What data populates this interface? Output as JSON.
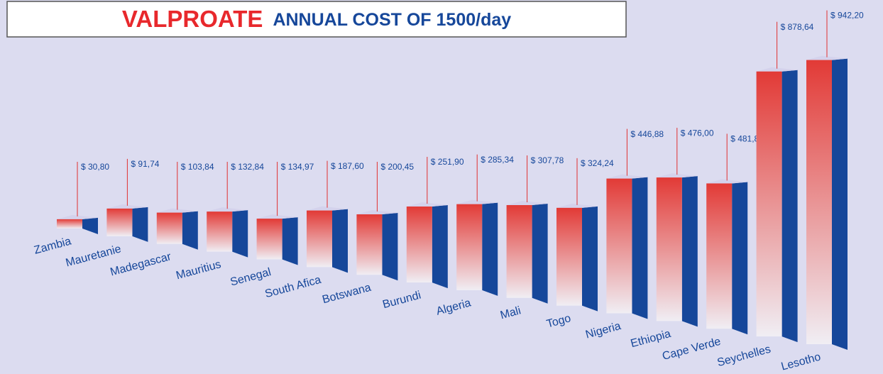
{
  "chart_data": {
    "type": "bar3d",
    "title": "VALPROATE",
    "subtitle": "ANNUAL COST OF 1500/day",
    "categories": [
      "Zambia",
      "Mauretanie",
      "Madegascar",
      "Mauritius",
      "Senegal",
      "South Afica",
      "Botswana",
      "Burundi",
      "Algeria",
      "Mali",
      "Togo",
      "Nigeria",
      "Ethiopia",
      "Cape Verde",
      "Seychelles",
      "Lesotho"
    ],
    "values": [
      30.8,
      91.74,
      103.84,
      132.84,
      134.97,
      187.6,
      200.45,
      251.9,
      285.34,
      307.78,
      324.24,
      446.88,
      476.0,
      481.88,
      878.64,
      942.2
    ],
    "value_labels": [
      "$ 30,80",
      "$ 91,74",
      "$ 103,84",
      "$ 132,84",
      "$ 134,97",
      "$ 187,60",
      "$ 200,45",
      "$ 251,90",
      "$ 285,34",
      "$ 307,78",
      "$ 324,24",
      "$ 446,88",
      "$ 476,00",
      "$ 481,88",
      "$ 878,64",
      "$ 942,20"
    ],
    "color": "#e23a36",
    "side_color": "#16479a"
  }
}
